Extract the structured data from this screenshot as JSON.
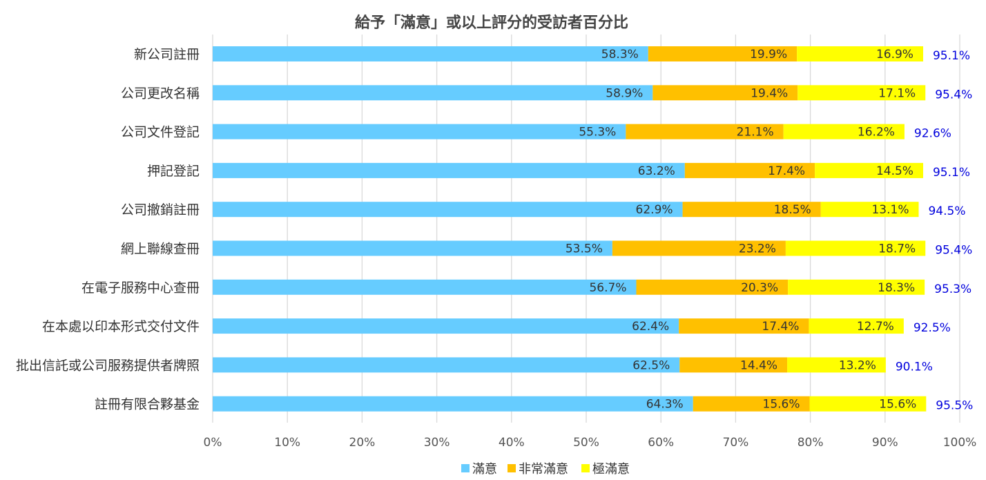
{
  "chart_data": {
    "type": "bar",
    "orientation": "horizontal",
    "stacked": true,
    "title": "給予「滿意」或以上評分的受訪者百分比",
    "categories": [
      "新公司註冊",
      "公司更改名稱",
      "公司文件登記",
      "押記登記",
      "公司撤銷註冊",
      "網上聯線查冊",
      "在電子服務中心查冊",
      "在本處以印本形式交付文件",
      "批出信託或公司服務提供者牌照",
      "註冊有限合夥基金"
    ],
    "series": [
      {
        "name": "滿意",
        "color": "#66CCFF",
        "values": [
          58.3,
          58.9,
          55.3,
          63.2,
          62.9,
          53.5,
          56.7,
          62.4,
          62.5,
          64.3
        ],
        "labels": [
          "58.3%",
          "58.9%",
          "55.3%",
          "63.2%",
          "62.9%",
          "53.5%",
          "56.7%",
          "62.4%",
          "62.5%",
          "64.3%"
        ]
      },
      {
        "name": "非常滿意",
        "color": "#FFC000",
        "values": [
          19.9,
          19.4,
          21.1,
          17.4,
          18.5,
          23.2,
          20.3,
          17.4,
          14.4,
          15.6
        ],
        "labels": [
          "19.9%",
          "19.4%",
          "21.1%",
          "17.4%",
          "18.5%",
          "23.2%",
          "20.3%",
          "17.4%",
          "14.4%",
          "15.6%"
        ]
      },
      {
        "name": "極滿意",
        "color": "#FFFF00",
        "values": [
          16.9,
          17.1,
          16.2,
          14.5,
          13.1,
          18.7,
          18.3,
          12.7,
          13.2,
          15.6
        ],
        "labels": [
          "16.9%",
          "17.1%",
          "16.2%",
          "14.5%",
          "13.1%",
          "18.7%",
          "18.3%",
          "12.7%",
          "13.2%",
          "15.6%"
        ]
      }
    ],
    "totals": [
      95.1,
      95.4,
      92.6,
      95.1,
      94.5,
      95.4,
      95.3,
      92.5,
      90.1,
      95.5
    ],
    "total_labels": [
      "95.1%",
      "95.4%",
      "92.6%",
      "95.1%",
      "94.5%",
      "95.4%",
      "95.3%",
      "92.5%",
      "90.1%",
      "95.5%"
    ],
    "total_label_color": "#0000DD",
    "xlim": [
      0,
      100
    ],
    "x_ticks": [
      "0%",
      "10%",
      "20%",
      "30%",
      "40%",
      "50%",
      "60%",
      "70%",
      "80%",
      "90%",
      "100%"
    ],
    "grid": true,
    "legend": {
      "position": "bottom-center",
      "entries": [
        "滿意",
        "非常滿意",
        "極滿意"
      ]
    }
  }
}
